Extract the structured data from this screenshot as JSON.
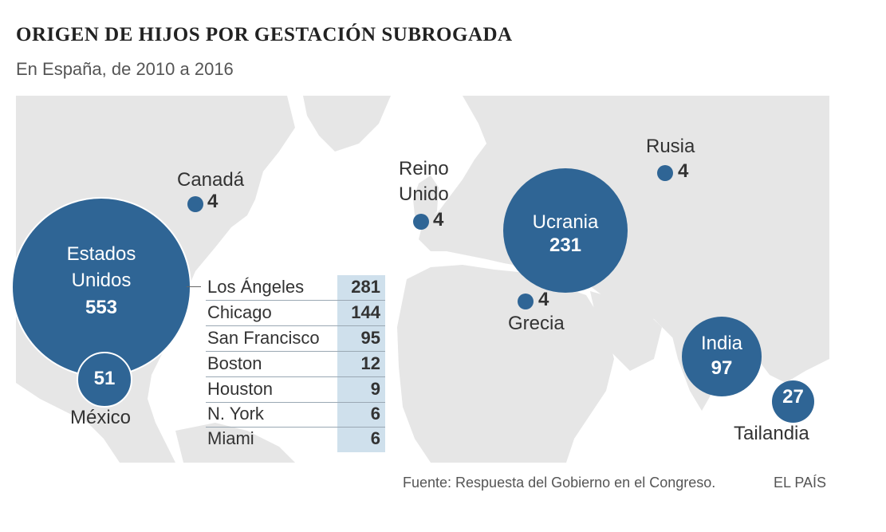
{
  "title": "ORIGEN DE HIJOS POR GESTACIÓN SUBROGADA",
  "subtitle": "En España, de 2010 a 2016",
  "countries": {
    "eeuu": {
      "name_line1": "Estados",
      "name_line2": "Unidos",
      "value": "553"
    },
    "mexico": {
      "name": "México",
      "value": "51"
    },
    "canada": {
      "name": "Canadá",
      "value": "4"
    },
    "reino_unido": {
      "name_line1": "Reino",
      "name_line2": "Unido",
      "value": "4"
    },
    "ucrania": {
      "name": "Ucrania",
      "value": "231"
    },
    "rusia": {
      "name": "Rusia",
      "value": "4"
    },
    "grecia": {
      "name": "Grecia",
      "value": "4"
    },
    "india": {
      "name": "India",
      "value": "97"
    },
    "tailandia": {
      "name": "Tailandia",
      "value": "27"
    }
  },
  "us_cities": [
    {
      "name": "Los Ángeles",
      "value": "281"
    },
    {
      "name": "Chicago",
      "value": "144"
    },
    {
      "name": "San Francisco",
      "value": "95"
    },
    {
      "name": "Boston",
      "value": "12"
    },
    {
      "name": "Houston",
      "value": "9"
    },
    {
      "name": "N. York",
      "value": "6"
    },
    {
      "name": "Miami",
      "value": "6"
    }
  ],
  "source": "Fuente: Respuesta del Gobierno en el Congreso.",
  "brand": "EL PAÍS",
  "colors": {
    "circle": "#2f6595",
    "land": "#e6e6e6",
    "table_highlight": "#cfe0ec"
  }
}
